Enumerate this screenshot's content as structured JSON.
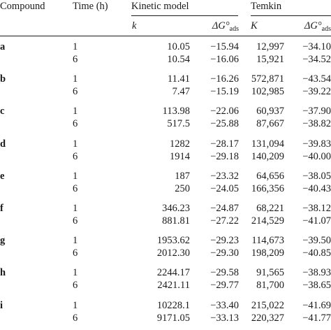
{
  "table": {
    "headers": {
      "compound": "Compound",
      "time": "Time (h)",
      "kinetic_group": "Kinetic model",
      "temkin_group": "Temkin",
      "k": "k",
      "dg_k": "ΔG°",
      "K": "K",
      "dg_T": "ΔG°",
      "ads": "ads"
    },
    "rows": [
      {
        "compound": "a",
        "time1": "1",
        "k1": "10.05",
        "dgk1": "−15.94",
        "K1": "12,997",
        "dgt1": "−34.10",
        "time2": "6",
        "k2": "10.54",
        "dgk2": "−16.06",
        "K2": "15,921",
        "dgt2": "−34.52"
      },
      {
        "compound": "b",
        "time1": "1",
        "k1": "11.41",
        "dgk1": "−16.26",
        "K1": "572,871",
        "dgt1": "−43.54",
        "time2": "6",
        "k2": "7.47",
        "dgk2": "−15.19",
        "K2": "102,985",
        "dgt2": "−39.22"
      },
      {
        "compound": "c",
        "time1": "1",
        "k1": "113.98",
        "dgk1": "−22.06",
        "K1": "60,937",
        "dgt1": "−37.90",
        "time2": "6",
        "k2": "517.5",
        "dgk2": "−25.88",
        "K2": "87,667",
        "dgt2": "−38.82"
      },
      {
        "compound": "d",
        "time1": "1",
        "k1": "1282",
        "dgk1": "−28.17",
        "K1": "131,094",
        "dgt1": "−39.83",
        "time2": "6",
        "k2": "1914",
        "dgk2": "−29.18",
        "K2": "140,209",
        "dgt2": "−40.00"
      },
      {
        "compound": "e",
        "time1": "1",
        "k1": "187",
        "dgk1": "−23.32",
        "K1": "64,656",
        "dgt1": "−38.05",
        "time2": "6",
        "k2": "250",
        "dgk2": "−24.05",
        "K2": "166,356",
        "dgt2": "−40.43"
      },
      {
        "compound": "f",
        "time1": "1",
        "k1": "346.23",
        "dgk1": "−24.87",
        "K1": "68,221",
        "dgt1": "−38.12",
        "time2": "6",
        "k2": "881.81",
        "dgk2": "−27.22",
        "K2": "214,529",
        "dgt2": "−41.07"
      },
      {
        "compound": "g",
        "time1": "1",
        "k1": "1953.62",
        "dgk1": "−29.23",
        "K1": "114,673",
        "dgt1": "−39.50",
        "time2": "6",
        "k2": "2012.30",
        "dgk2": "−29.30",
        "K2": "198,209",
        "dgt2": "−40.85"
      },
      {
        "compound": "h",
        "time1": "1",
        "k1": "2244.17",
        "dgk1": "−29.58",
        "K1": "91,565",
        "dgt1": "−38.93",
        "time2": "6",
        "k2": "2421.11",
        "dgk2": "−29.77",
        "K2": "81,700",
        "dgt2": "−38.65"
      },
      {
        "compound": "i",
        "time1": "1",
        "k1": "10228.1",
        "dgk1": "−33.40",
        "K1": "215,022",
        "dgt1": "−41.69",
        "time2": "6",
        "k2": "9171.05",
        "dgk2": "−33.13",
        "K2": "220,327",
        "dgt2": "−41.77"
      }
    ]
  }
}
